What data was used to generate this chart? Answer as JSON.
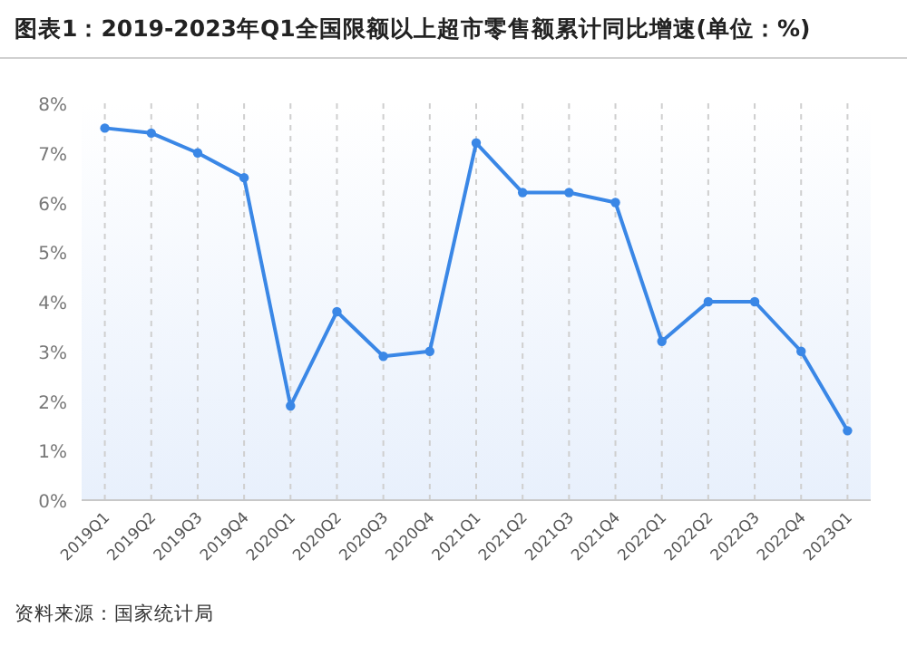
{
  "chart_data": {
    "type": "line",
    "title": "图表1：2019-2023年Q1全国限额以上超市零售额累计同比增速(单位：%)",
    "categories": [
      "2019Q1",
      "2019Q2",
      "2019Q3",
      "2019Q4",
      "2020Q1",
      "2020Q2",
      "2020Q3",
      "2020Q4",
      "2021Q1",
      "2021Q2",
      "2021Q3",
      "2021Q4",
      "2022Q1",
      "2022Q2",
      "2022Q3",
      "2022Q4",
      "2023Q1"
    ],
    "series": [
      {
        "color": "#3a87e6",
        "values": [
          7.5,
          7.4,
          7.0,
          6.5,
          1.9,
          3.8,
          2.9,
          3.0,
          7.2,
          6.2,
          6.2,
          6.0,
          3.2,
          4.0,
          4.0,
          3.0,
          1.4
        ]
      }
    ],
    "ylim": [
      0,
      8
    ],
    "yticks": [
      {
        "value": 0,
        "label": "0%"
      },
      {
        "value": 1,
        "label": "1%"
      },
      {
        "value": 2,
        "label": "2%"
      },
      {
        "value": 3,
        "label": "3%"
      },
      {
        "value": 4,
        "label": "4%"
      },
      {
        "value": 5,
        "label": "5%"
      },
      {
        "value": 6,
        "label": "6%"
      },
      {
        "value": 7,
        "label": "7%"
      },
      {
        "value": 8,
        "label": "8%"
      }
    ],
    "grid": "x",
    "marker": "circle",
    "line_style": "solid",
    "annotations": [
      "资料来源：国家统计局"
    ]
  }
}
